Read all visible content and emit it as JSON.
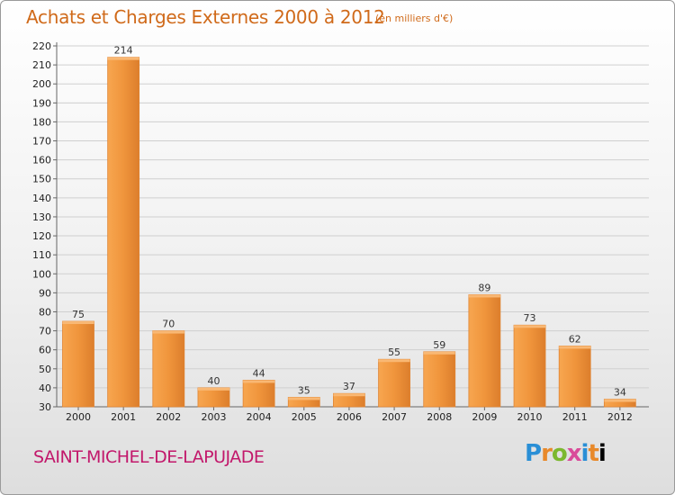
{
  "title": "Achats et Charges Externes 2000 à 2012",
  "title_unit": "(en milliers d'€)",
  "place": "SAINT-MICHEL-DE-LAPUJADE",
  "logo_text": "Proxiti",
  "colors": {
    "bar": "#f0953c",
    "bar_light": "#f8b062",
    "bar_dark": "#d8782a",
    "title": "#d06a1a",
    "place": "#c2186b"
  },
  "chart_data": {
    "type": "bar",
    "title": "Achats et Charges Externes 2000 à 2012",
    "categories": [
      "2000",
      "2001",
      "2002",
      "2003",
      "2004",
      "2005",
      "2006",
      "2007",
      "2008",
      "2009",
      "2010",
      "2011",
      "2012"
    ],
    "values": [
      75,
      214,
      70,
      40,
      44,
      35,
      37,
      55,
      59,
      89,
      73,
      62,
      34
    ],
    "ylim": [
      30,
      220
    ],
    "yticks": [
      30,
      40,
      50,
      60,
      70,
      80,
      90,
      100,
      110,
      120,
      130,
      140,
      150,
      160,
      170,
      180,
      190,
      200,
      210,
      220
    ],
    "grid": true,
    "legend": "none",
    "xlabel": "",
    "ylabel": ""
  }
}
